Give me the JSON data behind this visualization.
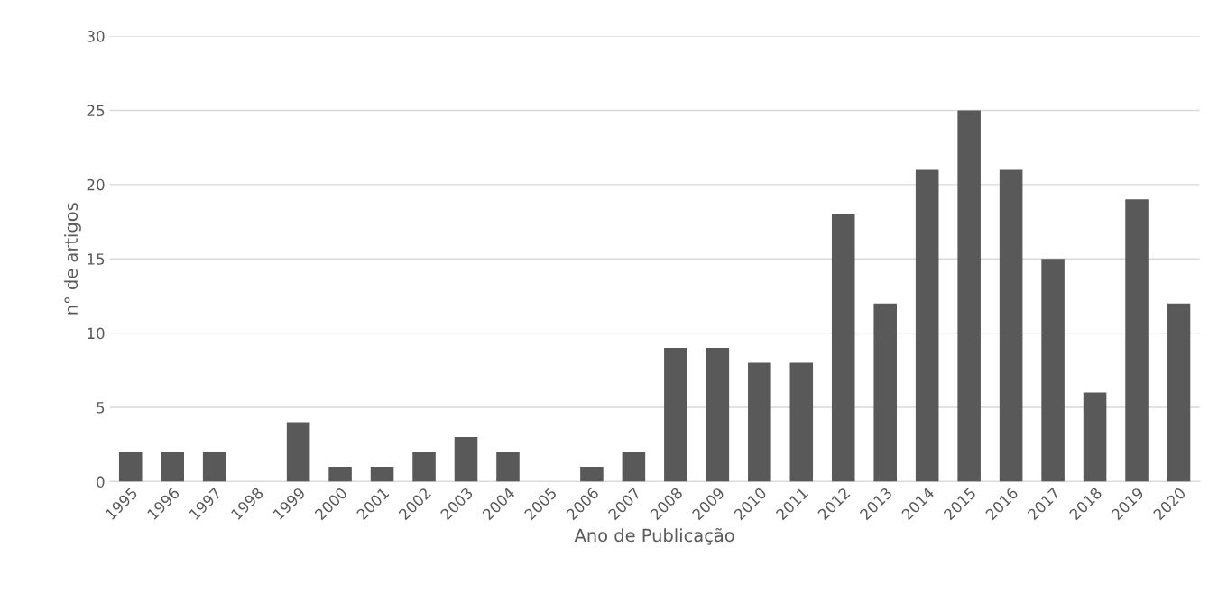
{
  "chart_data": {
    "type": "bar",
    "xlabel": "Ano de Publicação",
    "ylabel": "n° de artigos",
    "categories": [
      "1995",
      "1996",
      "1997",
      "1998",
      "1999",
      "2000",
      "2001",
      "2002",
      "2003",
      "2004",
      "2005",
      "2006",
      "2007",
      "2008",
      "2009",
      "2010",
      "2011",
      "2012",
      "2013",
      "2014",
      "2015",
      "2016",
      "2017",
      "2018",
      "2019",
      "2020"
    ],
    "values": [
      2,
      2,
      2,
      0,
      4,
      1,
      1,
      2,
      3,
      2,
      0,
      1,
      2,
      9,
      9,
      8,
      8,
      18,
      12,
      21,
      25,
      21,
      15,
      6,
      19,
      12
    ],
    "color": "#595959",
    "ylim": [
      0,
      30
    ],
    "yticks": [
      0,
      5,
      10,
      15,
      20,
      25,
      30
    ],
    "grid": "y",
    "legend": false
  }
}
